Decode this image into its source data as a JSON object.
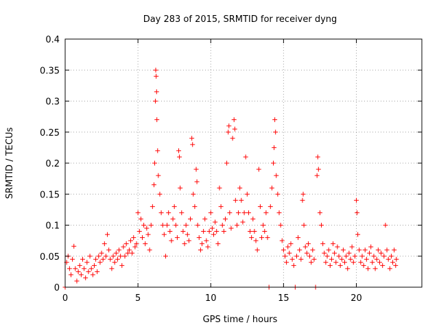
{
  "chart_data": {
    "type": "scatter",
    "title": "Day 283 of 2015, SRMTID for receiver dyng",
    "xlabel": "GPS time / hours",
    "ylabel": "SRMTID / TECUs",
    "xlim": [
      0,
      24.5
    ],
    "ylim": [
      0,
      0.4
    ],
    "x_ticks": [
      0,
      5,
      10,
      15,
      20
    ],
    "x_tick_labels": [
      "0",
      "5",
      "10",
      "15",
      "20"
    ],
    "y_ticks": [
      0,
      0.05,
      0.1,
      0.15,
      0.2,
      0.25,
      0.3,
      0.35,
      0.4
    ],
    "y_tick_labels": [
      "0",
      "0.05",
      "0.1",
      "0.15",
      "0.2",
      "0.25",
      "0.3",
      "0.35",
      "0.4"
    ],
    "grid": true,
    "marker": "plus",
    "color": "#ff0000",
    "series": [
      {
        "name": "SRMTID",
        "points": [
          [
            0.0,
            0.0
          ],
          [
            0.1,
            0.04
          ],
          [
            0.2,
            0.05
          ],
          [
            0.3,
            0.03
          ],
          [
            0.4,
            0.02
          ],
          [
            0.5,
            0.045
          ],
          [
            0.6,
            0.066
          ],
          [
            0.7,
            0.03
          ],
          [
            0.8,
            0.01
          ],
          [
            0.9,
            0.025
          ],
          [
            1.0,
            0.035
          ],
          [
            1.1,
            0.02
          ],
          [
            1.2,
            0.045
          ],
          [
            1.3,
            0.03
          ],
          [
            1.4,
            0.015
          ],
          [
            1.5,
            0.04
          ],
          [
            1.6,
            0.025
          ],
          [
            1.7,
            0.05
          ],
          [
            1.8,
            0.03
          ],
          [
            1.9,
            0.02
          ],
          [
            2.0,
            0.035
          ],
          [
            2.1,
            0.045
          ],
          [
            2.2,
            0.025
          ],
          [
            2.3,
            0.05
          ],
          [
            2.4,
            0.04
          ],
          [
            2.5,
            0.055
          ],
          [
            2.6,
            0.045
          ],
          [
            2.7,
            0.07
          ],
          [
            2.8,
            0.05
          ],
          [
            2.9,
            0.085
          ],
          [
            3.0,
            0.06
          ],
          [
            3.1,
            0.045
          ],
          [
            3.2,
            0.03
          ],
          [
            3.3,
            0.05
          ],
          [
            3.4,
            0.04
          ],
          [
            3.5,
            0.055
          ],
          [
            3.6,
            0.045
          ],
          [
            3.7,
            0.06
          ],
          [
            3.8,
            0.05
          ],
          [
            3.9,
            0.035
          ],
          [
            4.0,
            0.065
          ],
          [
            4.1,
            0.05
          ],
          [
            4.2,
            0.07
          ],
          [
            4.3,
            0.055
          ],
          [
            4.4,
            0.06
          ],
          [
            4.5,
            0.075
          ],
          [
            4.6,
            0.055
          ],
          [
            4.7,
            0.08
          ],
          [
            4.8,
            0.065
          ],
          [
            4.9,
            0.07
          ],
          [
            5.0,
            0.12
          ],
          [
            5.1,
            0.09
          ],
          [
            5.2,
            0.11
          ],
          [
            5.3,
            0.08
          ],
          [
            5.4,
            0.1
          ],
          [
            5.5,
            0.07
          ],
          [
            5.6,
            0.095
          ],
          [
            5.7,
            0.085
          ],
          [
            5.8,
            0.06
          ],
          [
            5.9,
            0.1
          ],
          [
            6.0,
            0.13
          ],
          [
            6.1,
            0.165
          ],
          [
            6.15,
            0.2
          ],
          [
            6.2,
            0.3
          ],
          [
            6.22,
            0.35
          ],
          [
            6.25,
            0.34
          ],
          [
            6.28,
            0.315
          ],
          [
            6.3,
            0.27
          ],
          [
            6.35,
            0.22
          ],
          [
            6.4,
            0.18
          ],
          [
            6.5,
            0.15
          ],
          [
            6.6,
            0.12
          ],
          [
            6.7,
            0.1
          ],
          [
            6.8,
            0.085
          ],
          [
            6.9,
            0.05
          ],
          [
            7.0,
            0.1
          ],
          [
            7.1,
            0.12
          ],
          [
            7.2,
            0.09
          ],
          [
            7.3,
            0.075
          ],
          [
            7.4,
            0.11
          ],
          [
            7.5,
            0.13
          ],
          [
            7.6,
            0.1
          ],
          [
            7.7,
            0.08
          ],
          [
            7.8,
            0.22
          ],
          [
            7.85,
            0.21
          ],
          [
            7.9,
            0.16
          ],
          [
            8.0,
            0.12
          ],
          [
            8.1,
            0.09
          ],
          [
            8.2,
            0.07
          ],
          [
            8.3,
            0.1
          ],
          [
            8.4,
            0.085
          ],
          [
            8.5,
            0.075
          ],
          [
            8.6,
            0.11
          ],
          [
            8.7,
            0.24
          ],
          [
            8.75,
            0.23
          ],
          [
            8.8,
            0.15
          ],
          [
            8.9,
            0.13
          ],
          [
            9.0,
            0.19
          ],
          [
            9.05,
            0.17
          ],
          [
            9.1,
            0.1
          ],
          [
            9.2,
            0.08
          ],
          [
            9.3,
            0.06
          ],
          [
            9.4,
            0.07
          ],
          [
            9.5,
            0.09
          ],
          [
            9.6,
            0.11
          ],
          [
            9.7,
            0.075
          ],
          [
            9.8,
            0.065
          ],
          [
            9.9,
            0.09
          ],
          [
            10.0,
            0.12
          ],
          [
            10.1,
            0.095
          ],
          [
            10.2,
            0.085
          ],
          [
            10.3,
            0.105
          ],
          [
            10.4,
            0.09
          ],
          [
            10.5,
            0.07
          ],
          [
            10.6,
            0.16
          ],
          [
            10.7,
            0.13
          ],
          [
            10.8,
            0.1
          ],
          [
            10.9,
            0.09
          ],
          [
            11.0,
            0.11
          ],
          [
            11.1,
            0.2
          ],
          [
            11.2,
            0.25
          ],
          [
            11.25,
            0.26
          ],
          [
            11.3,
            0.12
          ],
          [
            11.4,
            0.095
          ],
          [
            11.5,
            0.24
          ],
          [
            11.6,
            0.27
          ],
          [
            11.65,
            0.255
          ],
          [
            11.7,
            0.14
          ],
          [
            11.8,
            0.1
          ],
          [
            11.9,
            0.12
          ],
          [
            12.0,
            0.16
          ],
          [
            12.1,
            0.14
          ],
          [
            12.2,
            0.105
          ],
          [
            12.3,
            0.12
          ],
          [
            12.4,
            0.21
          ],
          [
            12.5,
            0.15
          ],
          [
            12.6,
            0.12
          ],
          [
            12.7,
            0.09
          ],
          [
            12.8,
            0.08
          ],
          [
            12.9,
            0.11
          ],
          [
            13.0,
            0.09
          ],
          [
            13.1,
            0.075
          ],
          [
            13.2,
            0.06
          ],
          [
            13.3,
            0.19
          ],
          [
            13.4,
            0.13
          ],
          [
            13.5,
            0.08
          ],
          [
            13.6,
            0.1
          ],
          [
            13.7,
            0.09
          ],
          [
            13.8,
            0.12
          ],
          [
            13.9,
            0.08
          ],
          [
            14.0,
            0.0
          ],
          [
            14.1,
            0.13
          ],
          [
            14.2,
            0.16
          ],
          [
            14.3,
            0.2
          ],
          [
            14.35,
            0.225
          ],
          [
            14.4,
            0.27
          ],
          [
            14.45,
            0.25
          ],
          [
            14.5,
            0.18
          ],
          [
            14.6,
            0.15
          ],
          [
            14.7,
            0.12
          ],
          [
            14.8,
            0.1
          ],
          [
            14.9,
            0.075
          ],
          [
            15.0,
            0.06
          ],
          [
            15.1,
            0.05
          ],
          [
            15.2,
            0.04
          ],
          [
            15.3,
            0.065
          ],
          [
            15.4,
            0.055
          ],
          [
            15.5,
            0.07
          ],
          [
            15.6,
            0.045
          ],
          [
            15.7,
            0.035
          ],
          [
            15.8,
            0.0
          ],
          [
            15.9,
            0.05
          ],
          [
            16.0,
            0.08
          ],
          [
            16.1,
            0.06
          ],
          [
            16.2,
            0.045
          ],
          [
            16.3,
            0.14
          ],
          [
            16.35,
            0.15
          ],
          [
            16.4,
            0.1
          ],
          [
            16.5,
            0.065
          ],
          [
            16.6,
            0.055
          ],
          [
            16.7,
            0.07
          ],
          [
            16.8,
            0.05
          ],
          [
            16.9,
            0.04
          ],
          [
            17.0,
            0.06
          ],
          [
            17.1,
            0.045
          ],
          [
            17.2,
            0.0
          ],
          [
            17.3,
            0.18
          ],
          [
            17.35,
            0.21
          ],
          [
            17.4,
            0.19
          ],
          [
            17.5,
            0.12
          ],
          [
            17.6,
            0.1
          ],
          [
            17.7,
            0.07
          ],
          [
            17.8,
            0.055
          ],
          [
            17.9,
            0.04
          ],
          [
            18.0,
            0.05
          ],
          [
            18.1,
            0.06
          ],
          [
            18.2,
            0.035
          ],
          [
            18.3,
            0.045
          ],
          [
            18.4,
            0.07
          ],
          [
            18.5,
            0.055
          ],
          [
            18.6,
            0.04
          ],
          [
            18.7,
            0.065
          ],
          [
            18.8,
            0.05
          ],
          [
            18.9,
            0.035
          ],
          [
            19.0,
            0.045
          ],
          [
            19.1,
            0.06
          ],
          [
            19.2,
            0.04
          ],
          [
            19.3,
            0.05
          ],
          [
            19.4,
            0.03
          ],
          [
            19.5,
            0.055
          ],
          [
            19.6,
            0.045
          ],
          [
            19.7,
            0.065
          ],
          [
            19.8,
            0.04
          ],
          [
            19.9,
            0.05
          ],
          [
            20.0,
            0.14
          ],
          [
            20.05,
            0.12
          ],
          [
            20.1,
            0.085
          ],
          [
            20.2,
            0.06
          ],
          [
            20.3,
            0.04
          ],
          [
            20.4,
            0.05
          ],
          [
            20.5,
            0.035
          ],
          [
            20.6,
            0.06
          ],
          [
            20.7,
            0.045
          ],
          [
            20.8,
            0.03
          ],
          [
            20.9,
            0.055
          ],
          [
            21.0,
            0.065
          ],
          [
            21.1,
            0.04
          ],
          [
            21.2,
            0.05
          ],
          [
            21.3,
            0.03
          ],
          [
            21.4,
            0.045
          ],
          [
            21.5,
            0.06
          ],
          [
            21.6,
            0.04
          ],
          [
            21.7,
            0.055
          ],
          [
            21.8,
            0.035
          ],
          [
            21.9,
            0.05
          ],
          [
            22.0,
            0.1
          ],
          [
            22.1,
            0.06
          ],
          [
            22.2,
            0.045
          ],
          [
            22.3,
            0.03
          ],
          [
            22.4,
            0.05
          ],
          [
            22.5,
            0.04
          ],
          [
            22.6,
            0.06
          ],
          [
            22.7,
            0.035
          ],
          [
            22.75,
            0.045
          ]
        ]
      }
    ]
  }
}
